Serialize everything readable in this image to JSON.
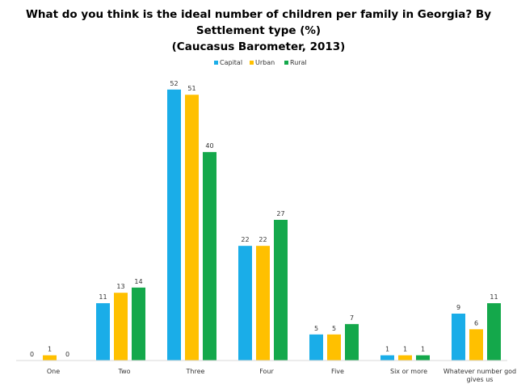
{
  "chart_data": {
    "type": "bar",
    "title_lines": [
      "What do you think is the ideal number of children per family in Georgia? By",
      "Settlement type (%)",
      "(Caucasus Barometer, 2013)"
    ],
    "xlabel": "",
    "ylabel": "",
    "ylim": [
      0,
      56
    ],
    "grid": false,
    "legend_position": "top-center",
    "categories": [
      [
        "One"
      ],
      [
        "Two"
      ],
      [
        "Three"
      ],
      [
        "Four"
      ],
      [
        "Five"
      ],
      [
        "Six or more"
      ],
      [
        "Whatever number god",
        "gives us"
      ]
    ],
    "series": [
      {
        "name": "Capital",
        "color": "#1AADE8",
        "values": [
          0,
          11,
          52,
          22,
          5,
          1,
          9
        ]
      },
      {
        "name": "Urban",
        "color": "#FFC000",
        "values": [
          1,
          13,
          51,
          22,
          5,
          1,
          6
        ]
      },
      {
        "name": "Rural",
        "color": "#14A84B",
        "values": [
          0,
          14,
          40,
          27,
          7,
          1,
          11
        ]
      }
    ]
  }
}
